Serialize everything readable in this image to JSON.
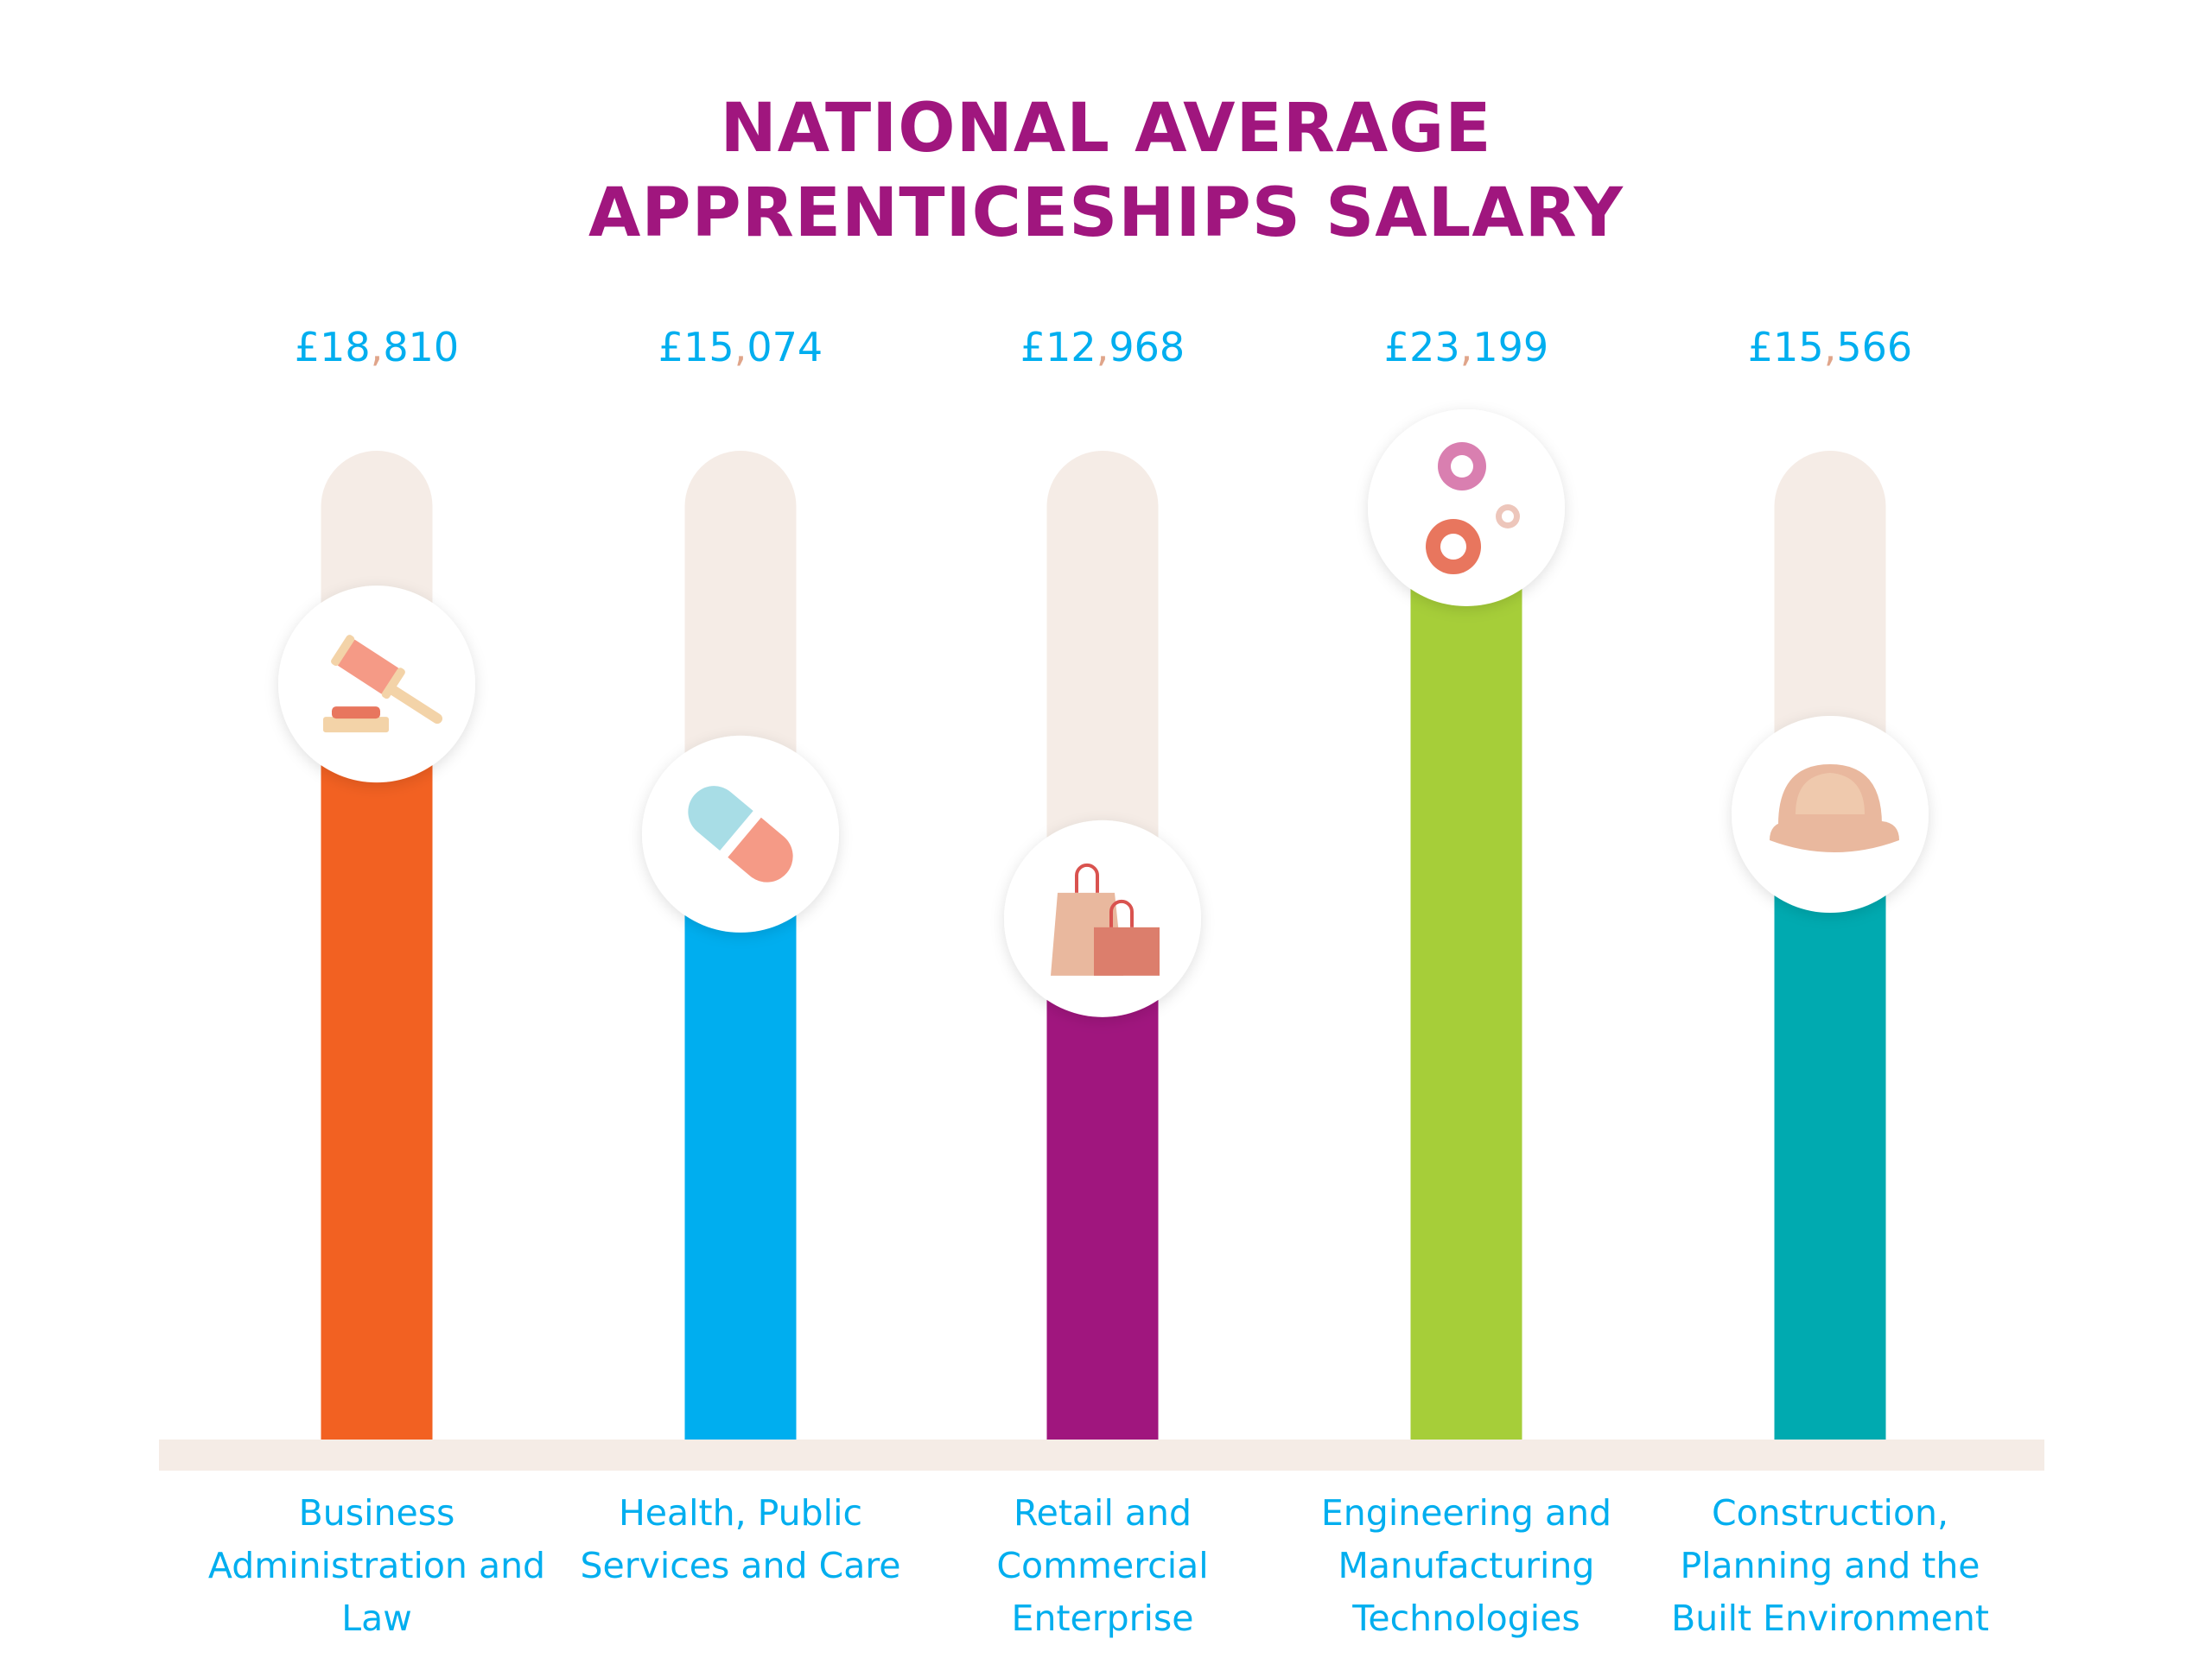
{
  "chart_data": {
    "type": "bar",
    "title": "NATIONAL AVERAGE APPRENTICESHIPS SALARY",
    "title_lines": [
      "NATIONAL AVERAGE",
      "APPRENTICESHIPS SALARY"
    ],
    "categories": [
      "Business Administration and Law",
      "Health, Public Services and Care",
      "Retail and Commercial Enterprise",
      "Engineering and Manufacturing Technologies",
      "Construction, Planning and the Built Environment"
    ],
    "values": [
      18810,
      15074,
      12968,
      23199,
      15566
    ],
    "value_labels": [
      "£18,810",
      "£15,074",
      "£12,968",
      "£23,199",
      "£15,566"
    ],
    "colors": [
      "#f26122",
      "#00aeef",
      "#a0167e",
      "#a6ce39",
      "#00aab0"
    ],
    "icons": [
      "gavel-icon",
      "pill-icon",
      "shopping-bags-icon",
      "gears-icon",
      "hard-hat-icon"
    ],
    "track_color": "#f5ece6",
    "title_color": "#a0167e",
    "ylim": [
      0,
      23199
    ],
    "grid": false
  }
}
